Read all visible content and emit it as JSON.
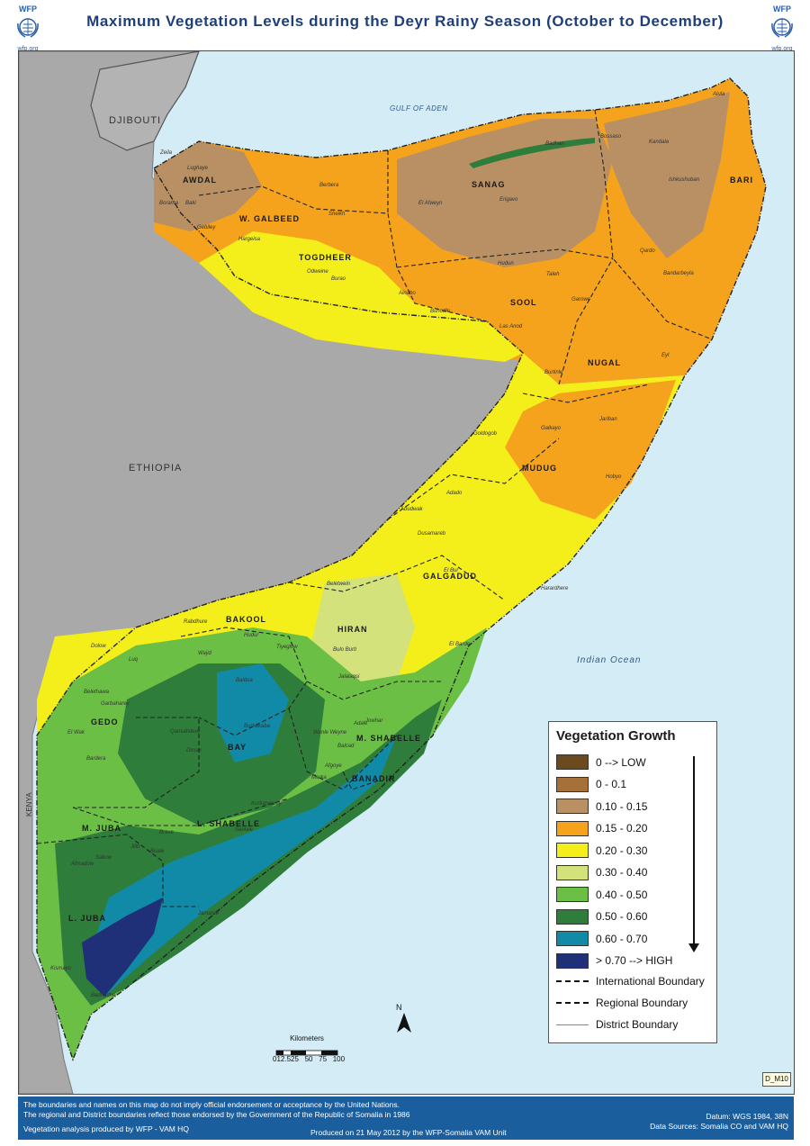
{
  "title": "Maximum Vegetation Levels during the Deyr Rainy Season (October to December)",
  "logo": {
    "name": "WFP",
    "url": "wfp.org"
  },
  "countries": [
    "DJIBOUTI",
    "ETHIOPIA",
    "KENYA"
  ],
  "water": [
    "GULF OF ADEN",
    "Indian Ocean"
  ],
  "regions": [
    "AWDAL",
    "W. GALBEED",
    "TOGDHEER",
    "SANAG",
    "BARI",
    "SOOL",
    "NUGAL",
    "MUDUG",
    "GALGADUD",
    "HIRAN",
    "BAKOOL",
    "GEDO",
    "BAY",
    "M. SHABELLE",
    "BANADIR",
    "L. SHABELLE",
    "M. JUBA",
    "L. JUBA"
  ],
  "districts": [
    "Zeila",
    "Lughaye",
    "Borama",
    "Baki",
    "Berbera",
    "Gebiley",
    "Hargeisa",
    "Sheikh",
    "Odweine",
    "Burao",
    "Ainabo",
    "El Afweyn",
    "Erigavo",
    "Badhan",
    "Bossaso",
    "Kandala",
    "Alula",
    "Ishkushuban",
    "Qardo",
    "Bandarbeyla",
    "Hudun",
    "Taleh",
    "Las Anod",
    "Buhodle",
    "Garowe",
    "Eyl",
    "Burtinle",
    "Galkayo",
    "Goldogob",
    "Jariban",
    "Hobyo",
    "Adado",
    "Abudwak",
    "Dusamareb",
    "El Bur",
    "Harardhere",
    "Beletwein",
    "Bulo Burti",
    "Jalalaqsi",
    "El Barde",
    "Rabdhure",
    "Hudur",
    "Tiyeglow",
    "Wajid",
    "Luq",
    "Dolow",
    "Belethawa",
    "Garbaharey",
    "El Wak",
    "Bardera",
    "Baidoa",
    "Burhakaba",
    "Dinsor",
    "Qansahdere",
    "Wanle Weyne",
    "Balcad",
    "Adale",
    "Jowhar",
    "Afgoye",
    "Marka",
    "Kurtunwarey",
    "Sablale",
    "Brava",
    "Buale",
    "Sakow",
    "Jilib",
    "Afmadow",
    "Kismayo",
    "Jamame",
    "Badhadhe"
  ],
  "legend": {
    "title": "Vegetation Growth",
    "items": [
      {
        "label": "0 --> LOW",
        "color": "#6b4a1f"
      },
      {
        "label": "0 - 0.1",
        "color": "#a6703a"
      },
      {
        "label": "0.10 - 0.15",
        "color": "#b89064"
      },
      {
        "label": "0.15 - 0.20",
        "color": "#f5a21c"
      },
      {
        "label": "0.20 - 0.30",
        "color": "#f4ef1a"
      },
      {
        "label": "0.30 - 0.40",
        "color": "#d3e27a"
      },
      {
        "label": "0.40 - 0.50",
        "color": "#6cbf45"
      },
      {
        "label": "0.50 - 0.60",
        "color": "#2e7d3a"
      },
      {
        "label": "0.60 - 0.70",
        "color": "#118aa8"
      },
      {
        "label": "> 0.70 --> HIGH",
        "color": "#1f2f78"
      }
    ],
    "boundaries": [
      "International Boundary",
      "Regional Boundary",
      "District Boundary"
    ]
  },
  "scale": {
    "title": "Kilometers",
    "ticks": "012.525   50   75   100"
  },
  "north": "N",
  "map_id": "D_M10",
  "footer": {
    "disclaimer1": "The boundaries and names on this map do not imply official endorsement or acceptance by the United Nations.",
    "disclaimer2": "The regional and District boundaries reflect  those endorsed by the Government of the  Republic of Somalia in 1986",
    "credit": "Vegetation analysis produced by WFP - VAM HQ",
    "produced": "Produced on 21 May 2012 by the WFP-Somalia VAM Unit",
    "datum": "Datum: WGS 1984, 38N",
    "sources": "Data Sources: Somalia CO and VAM HQ"
  }
}
